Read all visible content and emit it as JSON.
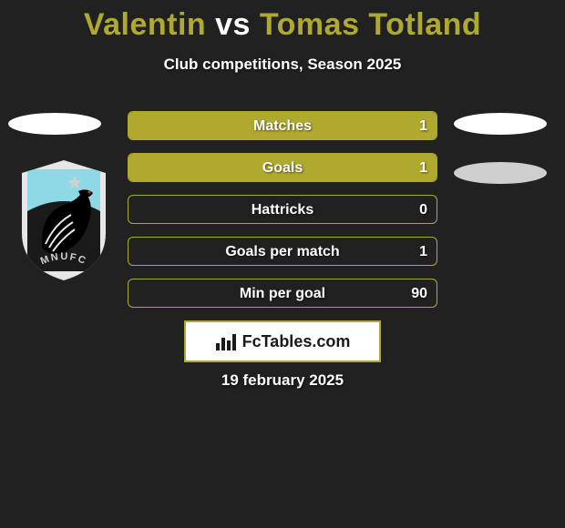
{
  "title": {
    "player1": "Valentin",
    "vs": "vs",
    "player2": "Tomas Totland",
    "player1_color": "#b0a92f",
    "player2_color": "#b0a92f",
    "vs_color": "#ffffff"
  },
  "subtitle": "Club competitions, Season 2025",
  "accent_color": "#b0a92f",
  "background_color": "#212121",
  "stats": [
    {
      "label": "Matches",
      "value": "1",
      "fill": 1.0
    },
    {
      "label": "Goals",
      "value": "1",
      "fill": 1.0
    },
    {
      "label": "Hattricks",
      "value": "0",
      "fill": 0.0
    },
    {
      "label": "Goals per match",
      "value": "1",
      "fill": 0.0
    },
    {
      "label": "Min per goal",
      "value": "90",
      "fill": 0.0
    }
  ],
  "branding": "FcTables.com",
  "date": "19 february 2025",
  "club_badge": {
    "shield_bg": "#e6e6e6",
    "inner_bg": "#1a1a1a",
    "accent": "#8fd9e6",
    "text": "MNUFC"
  }
}
